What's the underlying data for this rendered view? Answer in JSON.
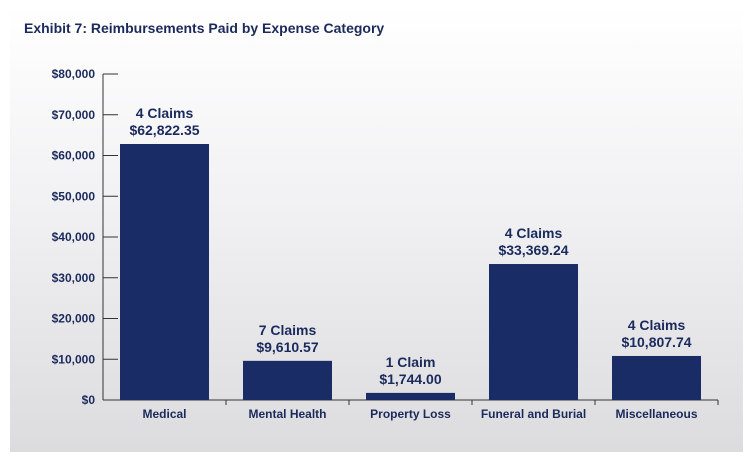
{
  "colors": {
    "bar": "#1a2c66",
    "text": "#1b2a5c",
    "axis": "#333333"
  },
  "chart_data": {
    "type": "bar",
    "title": "Exhibit 7: Reimbursements Paid by Expense Category",
    "xlabel": "",
    "ylabel": "",
    "ylim": [
      0,
      80000
    ],
    "yticks": [
      0,
      10000,
      20000,
      30000,
      40000,
      50000,
      60000,
      70000,
      80000
    ],
    "ytick_labels": [
      "$0",
      "$10,000",
      "$20,000",
      "$30,000",
      "$40,000",
      "$50,000",
      "$60,000",
      "$70,000",
      "$80,000"
    ],
    "categories": [
      "Medical",
      "Mental Health",
      "Property Loss",
      "Funeral and Burial",
      "Miscellaneous"
    ],
    "values": [
      62822.35,
      9610.57,
      1744.0,
      33369.24,
      10807.74
    ],
    "claims_labels": [
      "4 Claims",
      "7 Claims",
      "1 Claim",
      "4 Claims",
      "4 Claims"
    ],
    "value_labels": [
      "$62,822.35",
      "$9,610.57",
      "$1,744.00",
      "$33,369.24",
      "$10,807.74"
    ],
    "grid": false,
    "legend": "none"
  }
}
